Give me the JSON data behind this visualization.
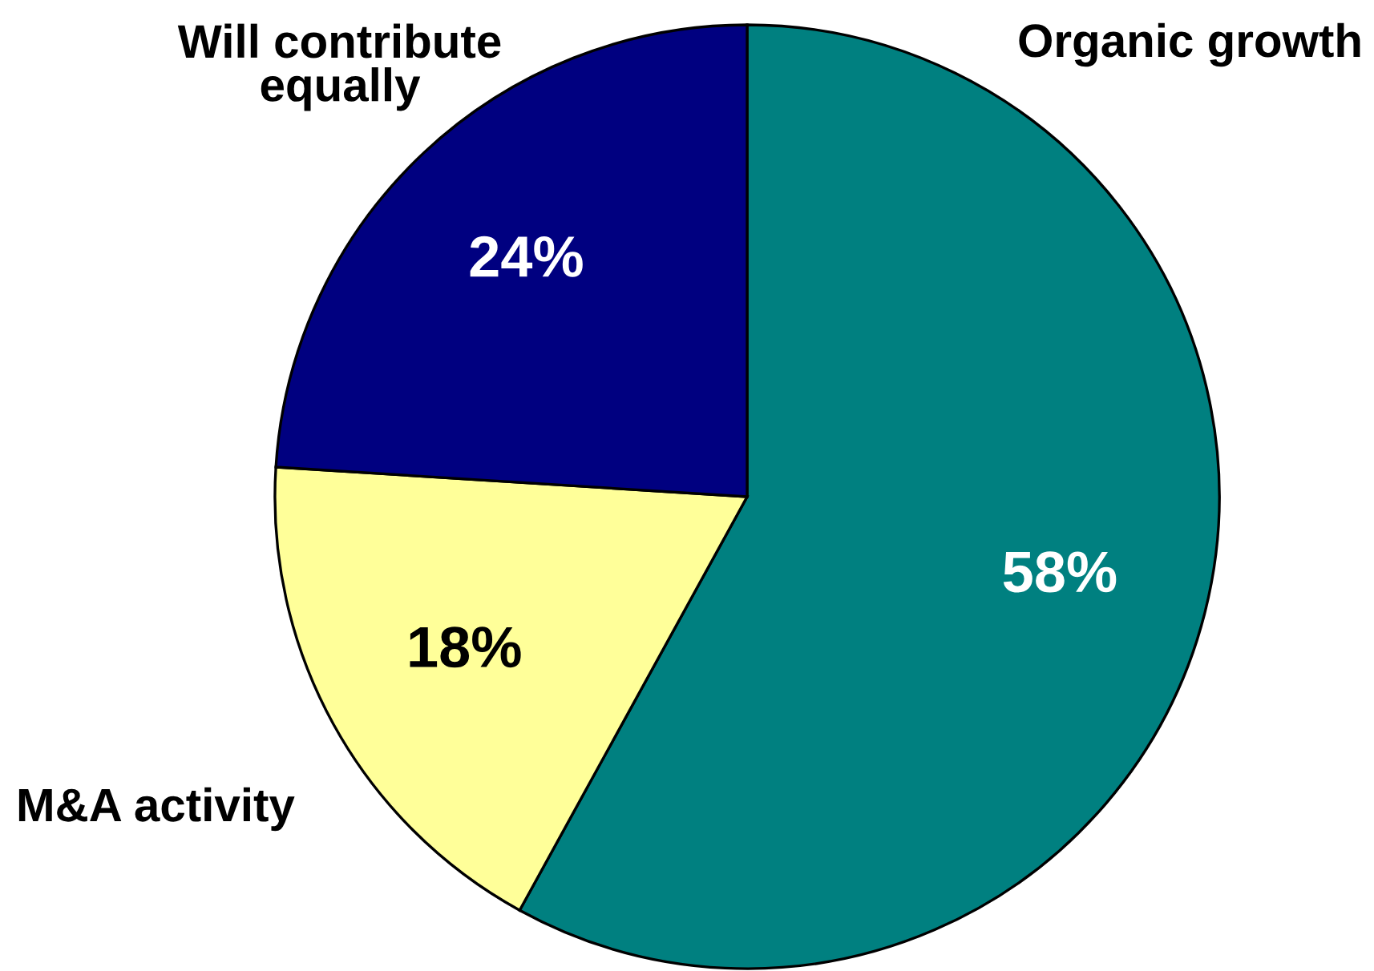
{
  "chart_data": {
    "type": "pie",
    "categories": [
      "Organic growth",
      "M&A activity",
      "Will contribute\nequally"
    ],
    "values": [
      58,
      18,
      24
    ],
    "colors": [
      "#008080",
      "#ffff99",
      "#000080"
    ],
    "value_labels": [
      "58%",
      "18%",
      "24%"
    ]
  }
}
